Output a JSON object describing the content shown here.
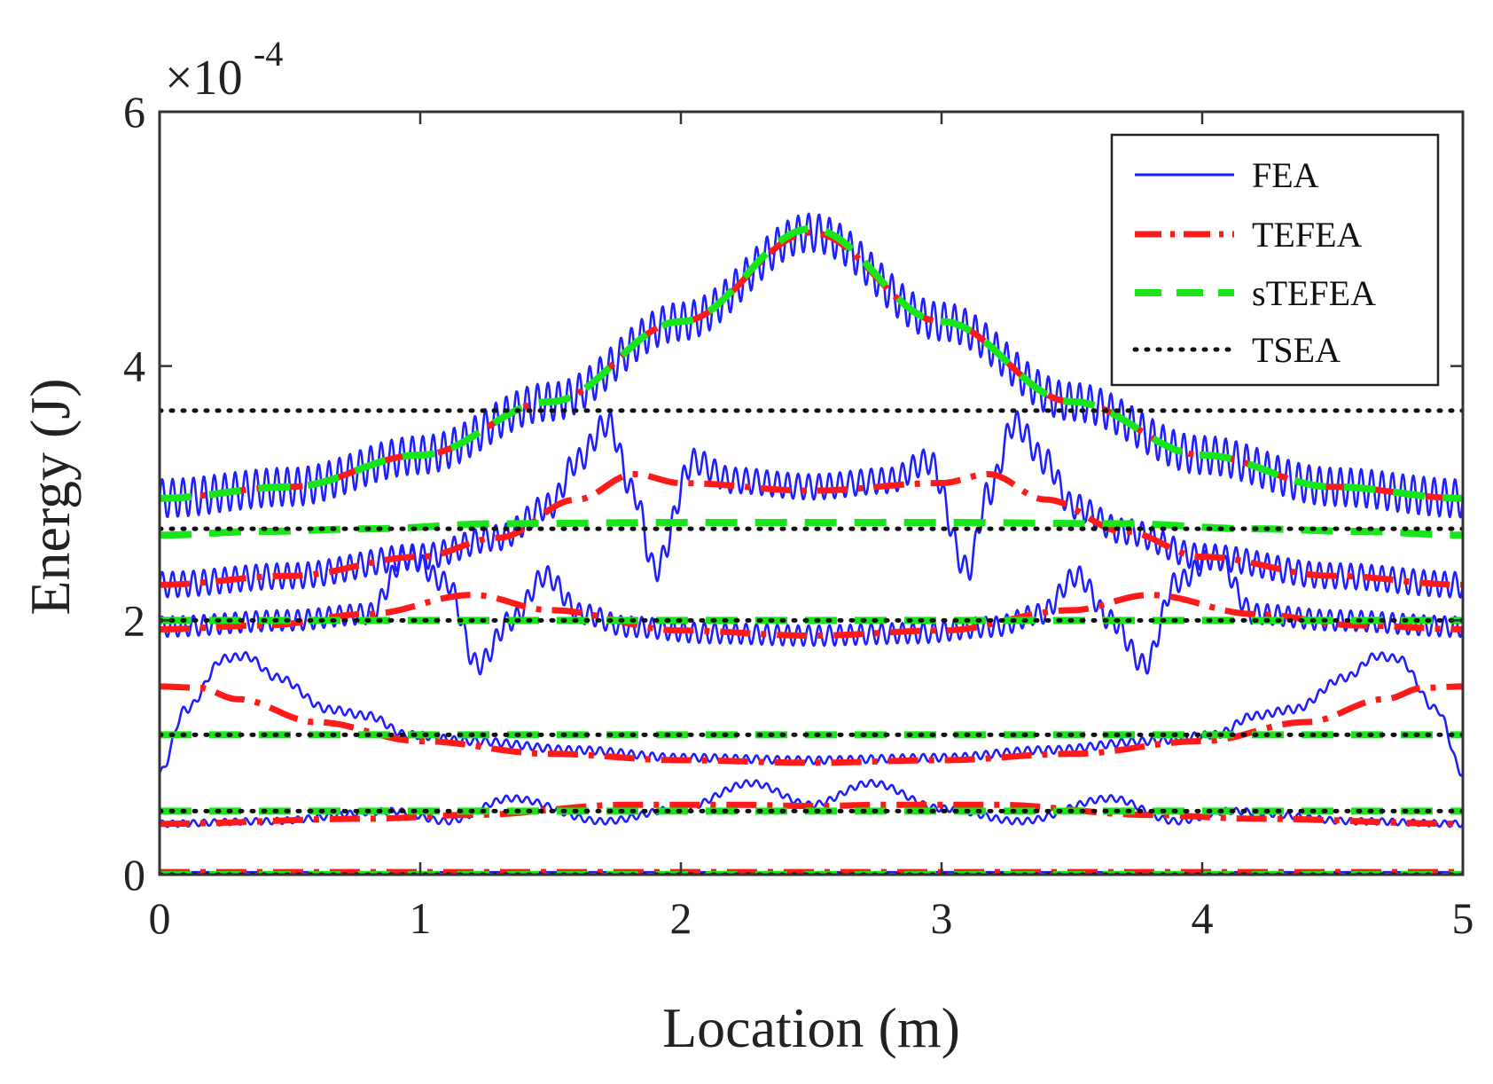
{
  "chart_data": {
    "type": "line",
    "xlabel": "Location (m)",
    "ylabel": "Energy (J)",
    "xlim": [
      0,
      5
    ],
    "ylim": [
      0,
      6
    ],
    "x_ticks": [
      "0",
      "1",
      "2",
      "3",
      "4",
      "5"
    ],
    "y_ticks": [
      "0",
      "2",
      "4",
      "6"
    ],
    "y_scale": {
      "base": "×10",
      "exponent": "-4"
    },
    "grid": false,
    "legend_position": "top-right",
    "legend": [
      {
        "name": "FEA",
        "color": "#1f1fff",
        "style": "solid"
      },
      {
        "name": "TEFEA",
        "color": "#ff1a1a",
        "style": "dash-dot"
      },
      {
        "name": "sTEFEA",
        "color": "#19e619",
        "style": "dashed"
      },
      {
        "name": "TSEA",
        "color": "#111111",
        "style": "dotted"
      }
    ],
    "series": [
      {
        "method": "FEA",
        "band": 1,
        "x": [
          0,
          0.5,
          1,
          1.5,
          2,
          2.5,
          3,
          3.5,
          4,
          4.5,
          5
        ],
        "y": [
          2.96,
          3.05,
          3.3,
          3.72,
          4.35,
          5.05,
          4.35,
          3.72,
          3.3,
          3.05,
          2.96
        ],
        "ripple_amplitude": 0.15,
        "ripple_period": 0.04
      },
      {
        "method": "TEFEA",
        "band": 1,
        "x": [
          0,
          0.5,
          1,
          1.5,
          2,
          2.5,
          3,
          3.5,
          4,
          4.5,
          5
        ],
        "y": [
          2.96,
          3.05,
          3.3,
          3.72,
          4.35,
          5.05,
          4.35,
          3.72,
          3.3,
          3.05,
          2.96
        ]
      },
      {
        "method": "sTEFEA",
        "band": 1,
        "x": [
          0,
          0.5,
          1,
          1.5,
          2,
          2.5,
          3,
          3.5,
          4,
          4.5,
          5
        ],
        "y": [
          2.96,
          3.05,
          3.3,
          3.72,
          4.35,
          5.08,
          4.35,
          3.72,
          3.3,
          3.05,
          2.96
        ]
      },
      {
        "method": "TSEA",
        "band": 1,
        "x": [
          0,
          5
        ],
        "y": [
          3.65,
          3.65
        ]
      },
      {
        "method": "FEA",
        "band": 2,
        "x": [
          0,
          0.5,
          1,
          1.3,
          1.5,
          1.6,
          1.72,
          1.82,
          1.9,
          2.05,
          2.2,
          2.5,
          2.8,
          2.95,
          3.1,
          3.18,
          3.28,
          3.4,
          3.5,
          3.7,
          4,
          4.5,
          5
        ],
        "y": [
          2.28,
          2.35,
          2.5,
          2.65,
          2.9,
          3.25,
          3.55,
          3.0,
          2.4,
          3.25,
          3.1,
          3.05,
          3.1,
          3.25,
          2.4,
          3.0,
          3.55,
          3.25,
          2.9,
          2.7,
          2.5,
          2.35,
          2.28
        ],
        "ripple_amplitude": 0.1,
        "ripple_period": 0.04
      },
      {
        "method": "TEFEA",
        "band": 2,
        "x": [
          0,
          0.5,
          1,
          1.3,
          1.6,
          1.82,
          2,
          2.5,
          3,
          3.18,
          3.4,
          3.7,
          4,
          4.5,
          5
        ],
        "y": [
          2.28,
          2.35,
          2.5,
          2.65,
          2.95,
          3.15,
          3.08,
          3.02,
          3.08,
          3.15,
          2.95,
          2.7,
          2.5,
          2.35,
          2.28
        ]
      },
      {
        "method": "sTEFEA",
        "band": 2,
        "x": [
          0,
          0.4,
          0.8,
          1.3,
          2,
          2.5,
          3,
          3.7,
          4.2,
          4.6,
          5
        ],
        "y": [
          2.67,
          2.7,
          2.72,
          2.76,
          2.77,
          2.77,
          2.77,
          2.76,
          2.72,
          2.7,
          2.67
        ]
      },
      {
        "method": "TSEA",
        "band": 2,
        "x": [
          0,
          5
        ],
        "y": [
          2.72,
          2.72
        ]
      },
      {
        "method": "FEA",
        "band": 3,
        "x": [
          0,
          0.5,
          0.8,
          0.95,
          1.1,
          1.22,
          1.35,
          1.48,
          1.62,
          1.8,
          2.1,
          2.5,
          2.9,
          3.2,
          3.38,
          3.52,
          3.65,
          3.78,
          3.9,
          4.05,
          4.2,
          4.5,
          5
        ],
        "y": [
          1.95,
          2.0,
          2.05,
          2.5,
          2.3,
          1.65,
          2.0,
          2.35,
          2.05,
          1.95,
          1.9,
          1.88,
          1.9,
          1.95,
          2.05,
          2.35,
          2.0,
          1.65,
          2.3,
          2.5,
          2.05,
          2.0,
          1.95
        ],
        "ripple_amplitude": 0.08,
        "ripple_period": 0.04
      },
      {
        "method": "TEFEA",
        "band": 3,
        "x": [
          0,
          0.4,
          0.8,
          1.2,
          1.5,
          2,
          2.5,
          3,
          3.5,
          3.8,
          4.2,
          4.6,
          5
        ],
        "y": [
          1.93,
          1.96,
          2.05,
          2.2,
          2.08,
          1.92,
          1.88,
          1.92,
          2.08,
          2.2,
          2.05,
          1.96,
          1.93
        ]
      },
      {
        "method": "sTEFEA",
        "band": 3,
        "x": [
          0,
          5
        ],
        "y": [
          2.0,
          2.0
        ]
      },
      {
        "method": "TSEA",
        "band": 3,
        "x": [
          0,
          5
        ],
        "y": [
          2.0,
          2.0
        ]
      },
      {
        "method": "FEA",
        "band": 4,
        "x": [
          0,
          0.1,
          0.25,
          0.33,
          0.45,
          0.65,
          0.8,
          0.95,
          1.2,
          1.6,
          2,
          2.5,
          3,
          3.4,
          3.8,
          4.05,
          4.2,
          4.35,
          4.55,
          4.67,
          4.75,
          4.9,
          5
        ],
        "y": [
          0.8,
          1.3,
          1.7,
          1.72,
          1.55,
          1.3,
          1.25,
          1.1,
          1.05,
          0.98,
          0.92,
          0.9,
          0.92,
          0.98,
          1.05,
          1.1,
          1.25,
          1.3,
          1.55,
          1.72,
          1.7,
          1.3,
          0.8
        ],
        "ripple_amplitude": 0.03,
        "ripple_period": 0.04
      },
      {
        "method": "TEFEA",
        "band": 4,
        "x": [
          0,
          0.15,
          0.3,
          0.6,
          1,
          1.5,
          2,
          2.5,
          3,
          3.5,
          4,
          4.4,
          4.7,
          4.85,
          5
        ],
        "y": [
          1.48,
          1.47,
          1.38,
          1.2,
          1.05,
          0.95,
          0.9,
          0.88,
          0.9,
          0.95,
          1.05,
          1.2,
          1.38,
          1.47,
          1.48
        ]
      },
      {
        "method": "sTEFEA",
        "band": 4,
        "x": [
          0,
          5
        ],
        "y": [
          1.1,
          1.1
        ]
      },
      {
        "method": "TSEA",
        "band": 4,
        "x": [
          0,
          5
        ],
        "y": [
          1.1,
          1.1
        ]
      },
      {
        "method": "FEA",
        "band": 5,
        "x": [
          0,
          0.4,
          0.9,
          1.1,
          1.35,
          1.7,
          2,
          2.27,
          2.5,
          2.73,
          3,
          3.3,
          3.65,
          3.9,
          4.1,
          4.6,
          5
        ],
        "y": [
          0.4,
          0.42,
          0.5,
          0.42,
          0.6,
          0.42,
          0.52,
          0.72,
          0.55,
          0.72,
          0.52,
          0.42,
          0.6,
          0.42,
          0.5,
          0.42,
          0.4
        ],
        "ripple_amplitude": 0.025,
        "ripple_period": 0.04
      },
      {
        "method": "TEFEA",
        "band": 5,
        "x": [
          0,
          0.8,
          1.2,
          1.8,
          2.2,
          2.5,
          2.8,
          3.2,
          3.8,
          4.2,
          5
        ],
        "y": [
          0.4,
          0.44,
          0.47,
          0.55,
          0.55,
          0.54,
          0.55,
          0.55,
          0.47,
          0.44,
          0.4
        ]
      },
      {
        "method": "sTEFEA",
        "band": 5,
        "x": [
          0,
          5
        ],
        "y": [
          0.5,
          0.5
        ]
      },
      {
        "method": "TSEA",
        "band": 5,
        "x": [
          0,
          5
        ],
        "y": [
          0.5,
          0.5
        ]
      },
      {
        "method": "FEA",
        "band": 6,
        "x": [
          0,
          5
        ],
        "y": [
          0.02,
          0.02
        ],
        "ripple_amplitude": 0,
        "ripple_period": 0.04
      },
      {
        "method": "TEFEA",
        "band": 6,
        "x": [
          0,
          5
        ],
        "y": [
          0.02,
          0.02
        ]
      },
      {
        "method": "sTEFEA",
        "band": 6,
        "x": [
          0,
          5
        ],
        "y": [
          0.0,
          0.0
        ]
      },
      {
        "method": "TSEA",
        "band": 6,
        "x": [
          0,
          5
        ],
        "y": [
          0.0,
          0.0
        ]
      }
    ]
  }
}
